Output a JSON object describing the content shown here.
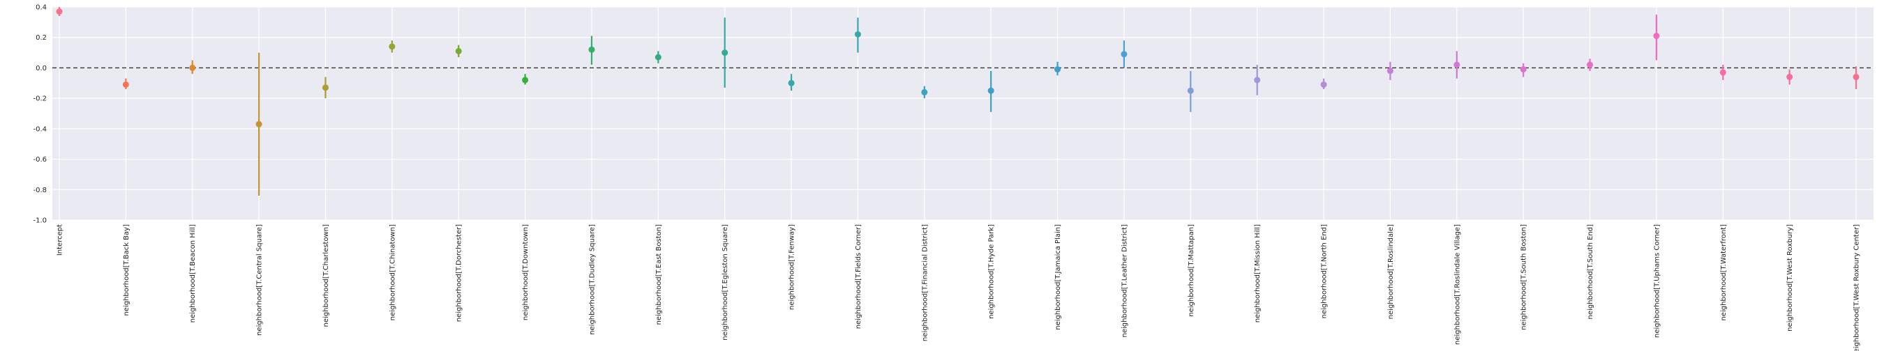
{
  "chart_data": {
    "type": "scatter",
    "title": "",
    "xlabel": "",
    "ylabel": "",
    "ylim": [
      -1.0,
      0.4
    ],
    "yticks": [
      "-1.0",
      "-0.8",
      "-0.6",
      "-0.4",
      "-0.2",
      "0.0",
      "0.2",
      "0.4"
    ],
    "grid": true,
    "reference_line": {
      "y": 0.0,
      "style": "dashed"
    },
    "categories": [
      "Intercept",
      "neighborhood[T.Back Bay]",
      "neighborhood[T.Beacon Hill]",
      "neighborhood[T.Central Square]",
      "neighborhood[T.Charlestown]",
      "neighborhood[T.Chinatown]",
      "neighborhood[T.Dorchester]",
      "neighborhood[T.Downtown]",
      "neighborhood[T.Dudley Square]",
      "neighborhood[T.East Boston]",
      "neighborhood[T.Egleston Square]",
      "neighborhood[T.Fenway]",
      "neighborhood[T.Fields Corner]",
      "neighborhood[T.Financial District]",
      "neighborhood[T.Hyde Park]",
      "neighborhood[T.Jamaica Plain]",
      "neighborhood[T.Leather District]",
      "neighborhood[T.Mattapan]",
      "neighborhood[T.Mission Hill]",
      "neighborhood[T.North End]",
      "neighborhood[T.Roslindale]",
      "neighborhood[T.Roslindale Village]",
      "neighborhood[T.South Boston]",
      "neighborhood[T.South End]",
      "neighborhood[T.Uphams Corner]",
      "neighborhood[T.Waterfront]",
      "neighborhood[T.West Roxbury]",
      "neighborhood[T.West Roxbury Center]"
    ],
    "values": [
      0.37,
      -0.11,
      0.0,
      -0.37,
      -0.13,
      0.14,
      0.11,
      -0.08,
      0.12,
      0.07,
      0.1,
      -0.1,
      0.22,
      -0.16,
      -0.15,
      -0.01,
      0.09,
      -0.15,
      -0.08,
      -0.11,
      -0.02,
      0.02,
      -0.01,
      0.02,
      0.21,
      -0.03,
      -0.06,
      -0.06
    ],
    "ci_low": [
      0.34,
      -0.14,
      -0.04,
      -0.84,
      -0.2,
      0.1,
      0.07,
      -0.11,
      0.02,
      0.03,
      -0.13,
      -0.15,
      0.1,
      -0.2,
      -0.29,
      -0.05,
      0.0,
      -0.29,
      -0.18,
      -0.14,
      -0.08,
      -0.07,
      -0.06,
      -0.02,
      0.05,
      -0.08,
      -0.11,
      -0.14
    ],
    "ci_high": [
      0.4,
      -0.07,
      0.05,
      0.1,
      -0.06,
      0.18,
      0.15,
      -0.04,
      0.21,
      0.11,
      0.33,
      -0.04,
      0.33,
      -0.12,
      -0.02,
      0.04,
      0.18,
      -0.02,
      0.02,
      -0.07,
      0.04,
      0.11,
      0.03,
      0.06,
      0.35,
      0.02,
      -0.01,
      0.01
    ],
    "colors": [
      "#f77189",
      "#f7754f",
      "#dc8932",
      "#c39532",
      "#ae9d31",
      "#97a431",
      "#77ab31",
      "#33b039",
      "#35ad6b",
      "#36ab82",
      "#37a997",
      "#38a7a5",
      "#39a7b0",
      "#3ba3bf",
      "#3da0c9",
      "#3f9ed0",
      "#4ba1d3",
      "#7e9ed6",
      "#9b9ad9",
      "#b08ed8",
      "#c281d6",
      "#d178d3",
      "#de73cd",
      "#e86fc5",
      "#f36bbf",
      "#f66ca8",
      "#f76e98",
      "#f7708d"
    ],
    "plot_bg": "#eaeaf2",
    "grid_color": "#ffffff"
  }
}
